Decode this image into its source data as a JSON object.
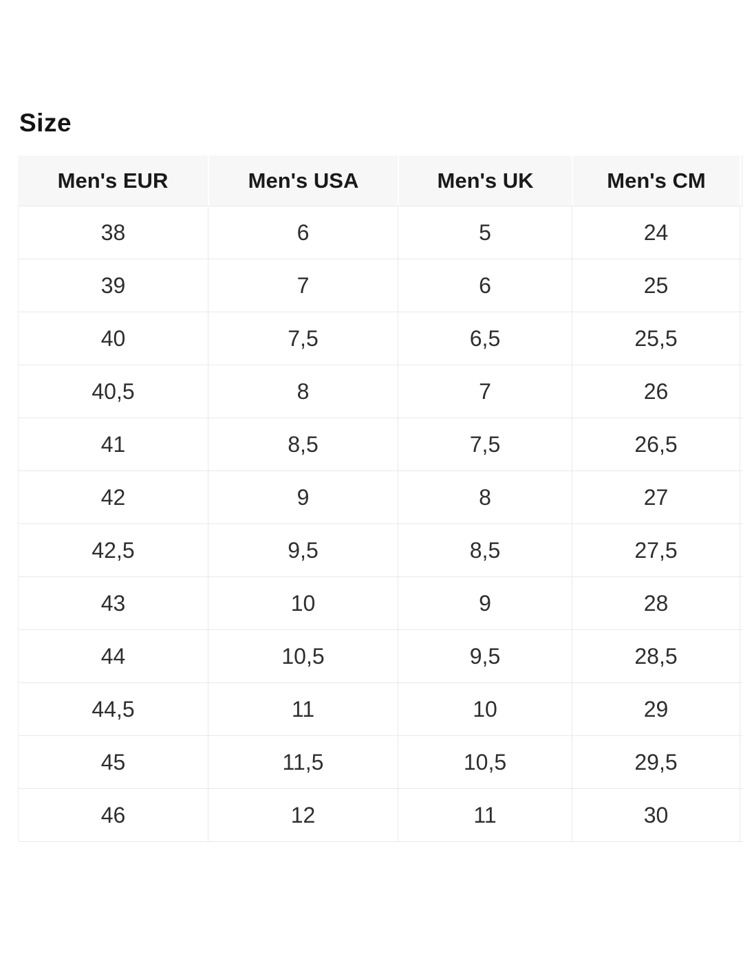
{
  "page": {
    "title": "Size"
  },
  "table": {
    "columns": [
      "Men's EUR",
      "Men's USA",
      "Men's UK",
      "Men's CM"
    ],
    "rows": [
      [
        "38",
        "6",
        "5",
        "24"
      ],
      [
        "39",
        "7",
        "6",
        "25"
      ],
      [
        "40",
        "7,5",
        "6,5",
        "25,5"
      ],
      [
        "40,5",
        "8",
        "7",
        "26"
      ],
      [
        "41",
        "8,5",
        "7,5",
        "26,5"
      ],
      [
        "42",
        "9",
        "8",
        "27"
      ],
      [
        "42,5",
        "9,5",
        "8,5",
        "27,5"
      ],
      [
        "43",
        "10",
        "9",
        "28"
      ],
      [
        "44",
        "10,5",
        "9,5",
        "28,5"
      ],
      [
        "44,5",
        "11",
        "10",
        "29"
      ],
      [
        "45",
        "11,5",
        "10,5",
        "29,5"
      ],
      [
        "46",
        "12",
        "11",
        "30"
      ]
    ]
  },
  "colors": {
    "header_bg": "#f7f7f7",
    "row_border": "#e9e9e9",
    "title_text": "#141414",
    "cell_text": "#2e2e2e"
  }
}
